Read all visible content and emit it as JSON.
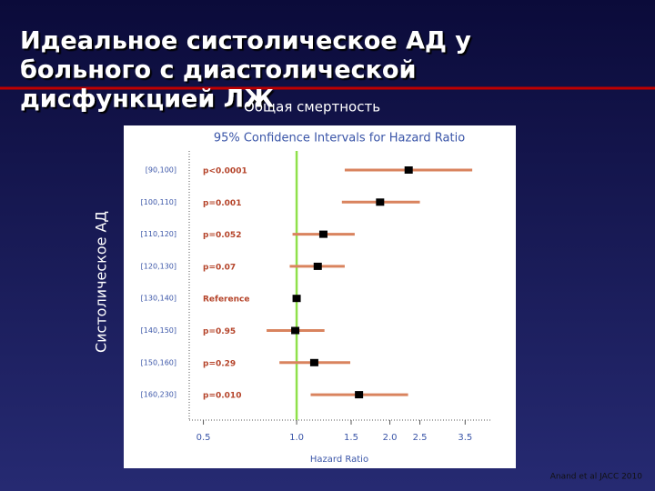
{
  "slide": {
    "title_lines": [
      "Идеальное систолическое АД у",
      "больного с диастолической",
      "дисфункцией ЛЖ"
    ],
    "subtitle": "Общая смертность",
    "source": "Anand et al JACC 2010"
  },
  "chart_data": {
    "type": "forest",
    "title": "95% Confidence Intervals for Hazard Ratio",
    "xlabel": "Hazard Ratio",
    "ylabel": "Систолическое АД",
    "categories": [
      "[90,100]",
      "[100,110]",
      "[110,120]",
      "[120,130]",
      "[130,140]",
      "[140,150]",
      "[150,160]",
      "[160,230]"
    ],
    "annotations": [
      "p<0.0001",
      "p=0.001",
      "p=0.052",
      "p=0.07",
      "Reference",
      "p=0.95",
      "p=0.29",
      "p=0.010"
    ],
    "values": [
      2.3,
      1.86,
      1.22,
      1.17,
      1.0,
      0.99,
      1.14,
      1.59
    ],
    "lower": [
      1.43,
      1.4,
      0.97,
      0.95,
      null,
      0.8,
      0.88,
      1.11
    ],
    "upper": [
      3.69,
      2.5,
      1.54,
      1.43,
      null,
      1.23,
      1.49,
      2.29
    ],
    "xlim": [
      0.45,
      4.25
    ],
    "xscale": "log",
    "xticks": [
      0.5,
      {
        "value": 1,
        "label": "1.0"
      },
      1.5,
      {
        "value": 2,
        "label": "2.0"
      },
      2.5,
      3.5
    ],
    "reference_line": 1,
    "reference_color": "#8fe04a",
    "ci_color": "#d9835e",
    "point_color": "#000000"
  }
}
